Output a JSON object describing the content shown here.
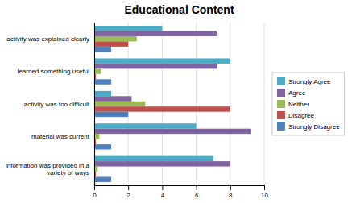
{
  "chart_data": {
    "type": "bar",
    "orientation": "horizontal",
    "title": "Educational Content",
    "categories": [
      "information was provided in a\nvariety of ways",
      "material was current",
      "activity was too difficult",
      "learned something useful",
      "activity was explained clearly"
    ],
    "series": [
      {
        "name": "Strongly Agree",
        "color": "#4BACC6",
        "values": [
          7.0,
          6.0,
          1.0,
          8.0,
          4.0
        ]
      },
      {
        "name": "Agree",
        "color": "#8064A2",
        "values": [
          8.0,
          9.2,
          2.2,
          7.2,
          7.2
        ]
      },
      {
        "name": "Neither",
        "color": "#9BBB59",
        "values": [
          0.2,
          0.3,
          3.0,
          0.4,
          2.5
        ]
      },
      {
        "name": "Disagree",
        "color": "#C0504D",
        "values": [
          0.1,
          0.1,
          8.0,
          0.1,
          2.0
        ]
      },
      {
        "name": "Strongly Disagree",
        "color": "#4F81BD",
        "values": [
          1.0,
          1.0,
          2.0,
          1.0,
          1.0
        ]
      }
    ],
    "xlim": [
      0,
      10
    ],
    "xticks": [
      0,
      2,
      4,
      6,
      8,
      10
    ],
    "grid": true,
    "legend": "right"
  }
}
